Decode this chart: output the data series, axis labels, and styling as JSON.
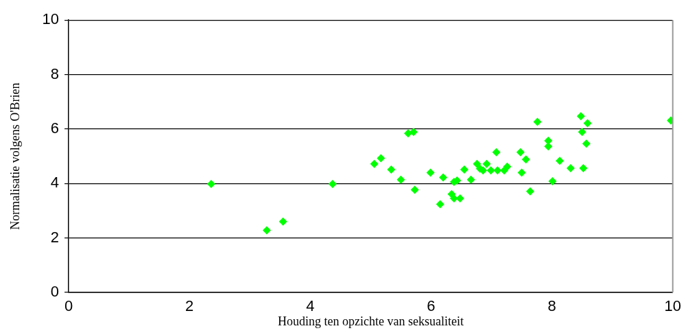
{
  "chart_data": {
    "type": "scatter",
    "xlabel": "Houding ten opzichte van seksualiteit",
    "ylabel": "Normalisatie volgens O'Brien",
    "xlim": [
      0,
      10
    ],
    "xticks": [
      0,
      2,
      4,
      6,
      8,
      10
    ],
    "ylim": [
      0,
      10
    ],
    "yticks": [
      0,
      2,
      4,
      6,
      8,
      10
    ],
    "grid": "y",
    "marker": "diamond",
    "legend": false,
    "series": [
      {
        "color": "#00ff00",
        "x": [
          2.36,
          3.28,
          3.55,
          4.37,
          5.06,
          5.17,
          5.34,
          5.5,
          5.62,
          5.71,
          5.73,
          5.99,
          6.15,
          6.2,
          6.34,
          6.38,
          6.38,
          6.43,
          6.48,
          6.55,
          6.66,
          6.76,
          6.81,
          6.86,
          6.92,
          6.99,
          7.08,
          7.1,
          7.21,
          7.26,
          7.48,
          7.5,
          7.57,
          7.64,
          7.76,
          7.94,
          7.94,
          8.01,
          8.13,
          8.31,
          8.48,
          8.5,
          8.52,
          8.57,
          8.59,
          9.97
        ],
        "values": [
          3.98,
          2.28,
          2.6,
          3.98,
          4.72,
          4.93,
          4.51,
          4.14,
          5.84,
          5.89,
          3.77,
          4.4,
          3.24,
          4.22,
          3.61,
          3.45,
          4.06,
          4.11,
          3.45,
          4.51,
          4.14,
          4.72,
          4.54,
          4.48,
          4.72,
          4.48,
          5.15,
          4.48,
          4.48,
          4.62,
          5.15,
          4.4,
          4.88,
          3.71,
          6.26,
          5.57,
          5.36,
          4.08,
          4.83,
          4.56,
          6.47,
          5.89,
          4.56,
          5.46,
          6.21,
          6.31
        ]
      }
    ]
  }
}
